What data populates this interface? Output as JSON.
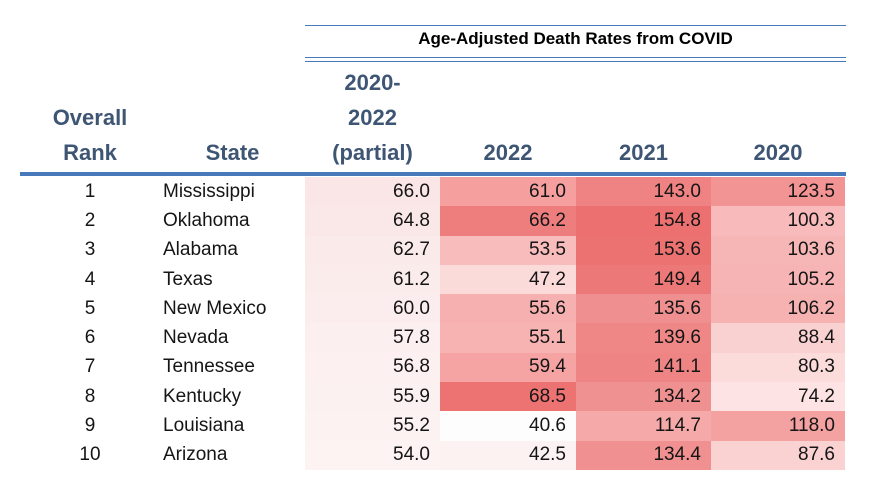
{
  "title": "Age-Adjusted Death Rates from COVID",
  "colors": {
    "rule_blue": "#4879ba",
    "header_text": "#3e5674",
    "title_text": "#000000",
    "body_text": "#151515",
    "heat_low": "#ffffff",
    "heat_high": "#ec7070"
  },
  "headers": {
    "rank_line1": "Overall",
    "rank_line2": "Rank",
    "state": "State",
    "partial_line1": "2020-",
    "partial_line2": "2022",
    "partial_line3": "(partial)",
    "y2022": "2022",
    "y2021": "2021",
    "y2020": "2020"
  },
  "rows": [
    {
      "rank": "1",
      "state": "Mississippi",
      "cells": [
        {
          "text": "66.0",
          "bg": "#fae6e6"
        },
        {
          "text": "61.0",
          "bg": "#f59f9f"
        },
        {
          "text": "143.0",
          "bg": "#ef8282"
        },
        {
          "text": "123.5",
          "bg": "#f29494"
        }
      ]
    },
    {
      "rank": "2",
      "state": "Oklahoma",
      "cells": [
        {
          "text": "64.8",
          "bg": "#fae8e8"
        },
        {
          "text": "66.2",
          "bg": "#ee7e7e"
        },
        {
          "text": "154.8",
          "bg": "#ec7070"
        },
        {
          "text": "100.3",
          "bg": "#f8baba"
        }
      ]
    },
    {
      "rank": "3",
      "state": "Alabama",
      "cells": [
        {
          "text": "62.7",
          "bg": "#fbeaea"
        },
        {
          "text": "53.5",
          "bg": "#f8bcbc"
        },
        {
          "text": "153.6",
          "bg": "#ec7272"
        },
        {
          "text": "103.6",
          "bg": "#f7b6b6"
        }
      ]
    },
    {
      "rank": "4",
      "state": "Texas",
      "cells": [
        {
          "text": "61.2",
          "bg": "#fbecec"
        },
        {
          "text": "47.2",
          "bg": "#fbdada"
        },
        {
          "text": "149.4",
          "bg": "#ed7878"
        },
        {
          "text": "105.2",
          "bg": "#f7b4b4"
        }
      ]
    },
    {
      "rank": "5",
      "state": "New Mexico",
      "cells": [
        {
          "text": "60.0",
          "bg": "#fbeded"
        },
        {
          "text": "55.6",
          "bg": "#f7b0b0"
        },
        {
          "text": "135.6",
          "bg": "#f08f8f"
        },
        {
          "text": "106.2",
          "bg": "#f6b1b1"
        }
      ]
    },
    {
      "rank": "6",
      "state": "Nevada",
      "cells": [
        {
          "text": "57.8",
          "bg": "#fcefef"
        },
        {
          "text": "55.1",
          "bg": "#f7b2b2"
        },
        {
          "text": "139.6",
          "bg": "#ef8787"
        },
        {
          "text": "88.4",
          "bg": "#fad1d1"
        }
      ]
    },
    {
      "rank": "7",
      "state": "Tennessee",
      "cells": [
        {
          "text": "56.8",
          "bg": "#fcf0f0"
        },
        {
          "text": "59.4",
          "bg": "#f5a3a3"
        },
        {
          "text": "141.1",
          "bg": "#ef8484"
        },
        {
          "text": "80.3",
          "bg": "#fcdbdb"
        }
      ]
    },
    {
      "rank": "8",
      "state": "Kentucky",
      "cells": [
        {
          "text": "55.9",
          "bg": "#fcf1f1"
        },
        {
          "text": "68.5",
          "bg": "#ed7373"
        },
        {
          "text": "134.2",
          "bg": "#f09191"
        },
        {
          "text": "74.2",
          "bg": "#fde3e3"
        }
      ]
    },
    {
      "rank": "9",
      "state": "Louisiana",
      "cells": [
        {
          "text": "55.2",
          "bg": "#fdf2f2"
        },
        {
          "text": "40.6",
          "bg": "#fefdfd"
        },
        {
          "text": "114.7",
          "bg": "#f5a9a9"
        },
        {
          "text": "118.0",
          "bg": "#f4a1a1"
        }
      ]
    },
    {
      "rank": "10",
      "state": "Arizona",
      "cells": [
        {
          "text": "54.0",
          "bg": "#fdf3f3"
        },
        {
          "text": "42.5",
          "bg": "#fdf2f2"
        },
        {
          "text": "134.4",
          "bg": "#f09090"
        },
        {
          "text": "87.6",
          "bg": "#fad2d2"
        }
      ]
    }
  ],
  "chart_data": {
    "type": "table",
    "title": "Age-Adjusted Death Rates from COVID",
    "columns": [
      "Overall Rank",
      "State",
      "2020-2022 (partial)",
      "2022",
      "2021",
      "2020"
    ],
    "rows": [
      [
        1,
        "Mississippi",
        66.0,
        61.0,
        143.0,
        123.5
      ],
      [
        2,
        "Oklahoma",
        64.8,
        66.2,
        154.8,
        100.3
      ],
      [
        3,
        "Alabama",
        62.7,
        53.5,
        153.6,
        103.6
      ],
      [
        4,
        "Texas",
        61.2,
        47.2,
        149.4,
        105.2
      ],
      [
        5,
        "New Mexico",
        60.0,
        55.6,
        135.6,
        106.2
      ],
      [
        6,
        "Nevada",
        57.8,
        55.1,
        139.6,
        88.4
      ],
      [
        7,
        "Tennessee",
        56.8,
        59.4,
        141.1,
        80.3
      ],
      [
        8,
        "Kentucky",
        55.9,
        68.5,
        134.2,
        74.2
      ],
      [
        9,
        "Louisiana",
        55.2,
        40.6,
        114.7,
        118.0
      ],
      [
        10,
        "Arizona",
        54.0,
        42.5,
        134.4,
        87.6
      ]
    ],
    "layout_hints": {
      "heatmap": "red color scale on numeric cells, darker = higher within column context",
      "value_alignment": "right",
      "rank_alignment": "center"
    }
  }
}
